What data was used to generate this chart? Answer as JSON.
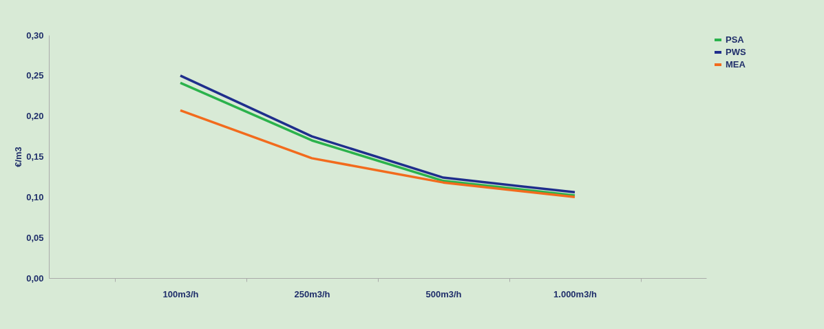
{
  "chart_data": {
    "type": "line",
    "ylabel": "€/m3",
    "categories": [
      "100m3/h",
      "250m3/h",
      "500m3/h",
      "1.000m3/h"
    ],
    "series": [
      {
        "name": "PSA",
        "color": "#2bb24c",
        "values": [
          0.241,
          0.17,
          0.12,
          0.102
        ]
      },
      {
        "name": "PWS",
        "color": "#1f2e8c",
        "values": [
          0.25,
          0.175,
          0.124,
          0.106
        ]
      },
      {
        "name": "MEA",
        "color": "#f26b1d",
        "values": [
          0.207,
          0.148,
          0.118,
          0.1
        ]
      }
    ],
    "ylim": [
      0,
      0.3
    ],
    "yticks": [
      {
        "value": 0,
        "label": "0,00"
      },
      {
        "value": 0.05,
        "label": "0,05"
      },
      {
        "value": 0.1,
        "label": "0,10"
      },
      {
        "value": 0.15,
        "label": "0,15"
      },
      {
        "value": 0.2,
        "label": "0,20"
      },
      {
        "value": 0.25,
        "label": "0,25"
      },
      {
        "value": 0.3,
        "label": "0,30"
      }
    ],
    "grid": false,
    "legend": "right",
    "marker": "none",
    "line_style": "solid"
  }
}
